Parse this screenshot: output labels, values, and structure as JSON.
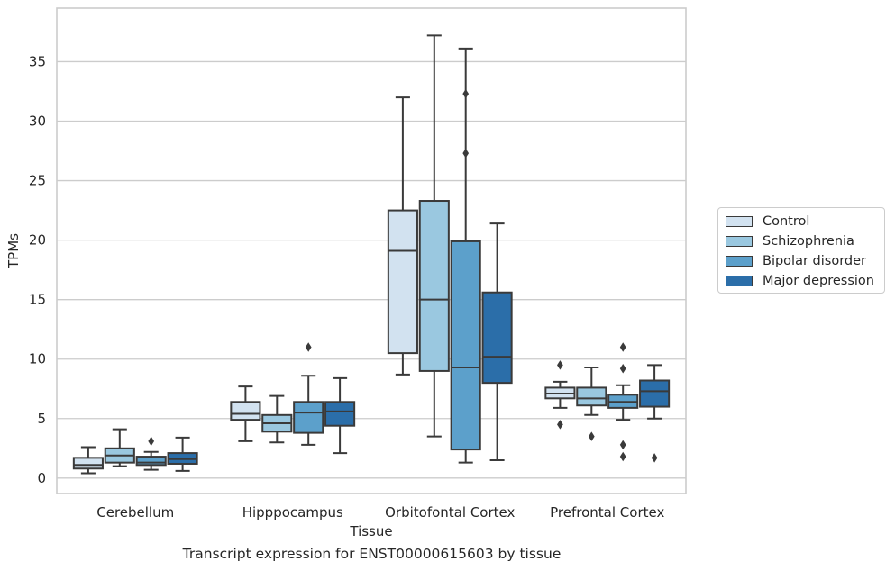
{
  "caption": "Transcript expression for ENST00000615603 by tissue",
  "colors": {
    "series": [
      "#d2e2f0",
      "#9ac8e0",
      "#5ca0cb",
      "#2b6ea9"
    ],
    "box_edge": "#3a3a3a",
    "grid": "#cccccc",
    "axes": "#cccccc"
  },
  "chart_data": {
    "type": "box",
    "xlabel": "Tissue",
    "ylabel": "TPMs",
    "ylim": [
      -1.3,
      39.5
    ],
    "yticks": [
      0,
      5,
      10,
      15,
      20,
      25,
      30,
      35
    ],
    "grid": "horizontal",
    "legend_placement": "right",
    "categories": [
      "Cerebellum",
      "Hipppocampus",
      "Orbitofontal Cortex",
      "Prefrontal Cortex"
    ],
    "series": [
      {
        "name": "Control",
        "boxes": [
          {
            "whislo": 0.4,
            "q1": 0.8,
            "med": 1.1,
            "q3": 1.7,
            "whishi": 2.6,
            "fliers": []
          },
          {
            "whislo": 3.1,
            "q1": 4.9,
            "med": 5.4,
            "q3": 6.4,
            "whishi": 7.7,
            "fliers": []
          },
          {
            "whislo": 8.7,
            "q1": 10.5,
            "med": 19.1,
            "q3": 22.5,
            "whishi": 32.0,
            "fliers": []
          },
          {
            "whislo": 5.9,
            "q1": 6.7,
            "med": 7.1,
            "q3": 7.6,
            "whishi": 8.1,
            "fliers": [
              9.5,
              4.5
            ]
          }
        ]
      },
      {
        "name": "Schizophrenia",
        "boxes": [
          {
            "whislo": 1.0,
            "q1": 1.3,
            "med": 1.9,
            "q3": 2.5,
            "whishi": 4.1,
            "fliers": []
          },
          {
            "whislo": 3.0,
            "q1": 3.9,
            "med": 4.6,
            "q3": 5.3,
            "whishi": 6.9,
            "fliers": []
          },
          {
            "whislo": 3.5,
            "q1": 9.0,
            "med": 15.0,
            "q3": 23.3,
            "whishi": 37.2,
            "fliers": []
          },
          {
            "whislo": 5.3,
            "q1": 6.1,
            "med": 6.7,
            "q3": 7.6,
            "whishi": 9.3,
            "fliers": [
              3.5
            ]
          }
        ]
      },
      {
        "name": "Bipolar disorder",
        "boxes": [
          {
            "whislo": 0.7,
            "q1": 1.1,
            "med": 1.3,
            "q3": 1.8,
            "whishi": 2.2,
            "fliers": [
              3.1
            ]
          },
          {
            "whislo": 2.8,
            "q1": 3.8,
            "med": 5.5,
            "q3": 6.4,
            "whishi": 8.6,
            "fliers": [
              11.0
            ]
          },
          {
            "whislo": 1.3,
            "q1": 2.4,
            "med": 9.3,
            "q3": 19.9,
            "whishi": 36.1,
            "fliers": [
              32.3,
              27.3
            ]
          },
          {
            "whislo": 4.9,
            "q1": 5.9,
            "med": 6.4,
            "q3": 7.0,
            "whishi": 7.8,
            "fliers": [
              11.0,
              9.2,
              2.8,
              1.8
            ]
          }
        ]
      },
      {
        "name": "Major depression",
        "boxes": [
          {
            "whislo": 0.6,
            "q1": 1.2,
            "med": 1.6,
            "q3": 2.1,
            "whishi": 3.4,
            "fliers": []
          },
          {
            "whislo": 2.1,
            "q1": 4.4,
            "med": 5.6,
            "q3": 6.4,
            "whishi": 8.4,
            "fliers": []
          },
          {
            "whislo": 1.5,
            "q1": 8.0,
            "med": 10.2,
            "q3": 15.6,
            "whishi": 21.4,
            "fliers": []
          },
          {
            "whislo": 5.0,
            "q1": 6.0,
            "med": 7.3,
            "q3": 8.2,
            "whishi": 9.5,
            "fliers": [
              1.7
            ]
          }
        ]
      }
    ]
  }
}
